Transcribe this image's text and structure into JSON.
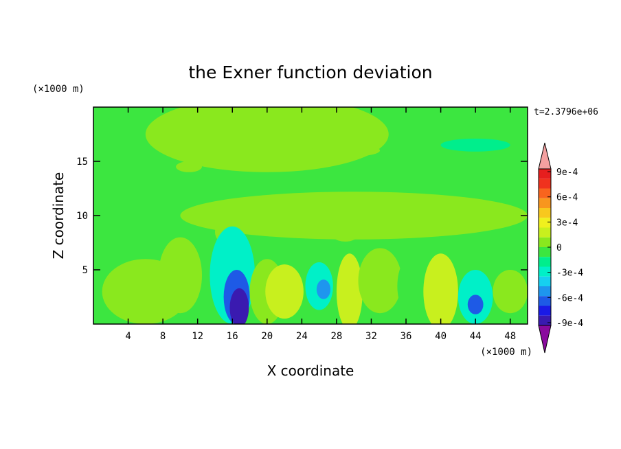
{
  "chart_data": {
    "type": "heatmap",
    "title": "the Exner function deviation",
    "xlabel": "X coordinate",
    "ylabel": "Z coordinate",
    "x_unit": "(×1000 m)",
    "y_unit": "(×1000 m)",
    "time_label": "t=2.3796e+06",
    "xlim": [
      0,
      50
    ],
    "ylim": [
      0,
      20
    ],
    "x_ticks": [
      4,
      8,
      12,
      16,
      20,
      24,
      28,
      32,
      36,
      40,
      44,
      48
    ],
    "y_ticks": [
      5,
      10,
      15
    ],
    "colorbar": {
      "min": -0.00105,
      "max": 0.00105,
      "tick_values": [
        0.0009,
        0.0006,
        0.0003,
        0,
        -0.0003,
        -0.0006,
        -0.0009
      ],
      "tick_labels": [
        "9e-4",
        "6e-4",
        "3e-4",
        "0",
        "-3e-4",
        "-6e-4",
        "-9e-4"
      ],
      "colors": [
        "#8a0a9e",
        "#3a1ab0",
        "#1a1ae6",
        "#1e5ae6",
        "#1e96ee",
        "#16d0f0",
        "#00f0c8",
        "#00ee8c",
        "#3ce640",
        "#8ae81e",
        "#c8f01e",
        "#f0f01e",
        "#f8c81e",
        "#f8961e",
        "#f8641e",
        "#f0321e",
        "#e61e1e",
        "#f4a0a0"
      ]
    },
    "field": {
      "background": -0.0001,
      "features": [
        {
          "x": 0,
          "z": 20,
          "rx": 2,
          "rz": 2,
          "value": -0.0001
        },
        {
          "x": 20,
          "z": 17.5,
          "rx": 14,
          "rz": 3.5,
          "value": 5e-05
        },
        {
          "x": 29,
          "z": 16,
          "rx": 4,
          "rz": 0.6,
          "value": 0.0001
        },
        {
          "x": 11,
          "z": 14.5,
          "rx": 1.5,
          "rz": 0.5,
          "value": 0.0001
        },
        {
          "x": 44,
          "z": 16.5,
          "rx": 4,
          "rz": 0.6,
          "value": -0.0002
        },
        {
          "x": 30,
          "z": 10,
          "rx": 20,
          "rz": 2.2,
          "value": 5e-05
        },
        {
          "x": 29,
          "z": 8.8,
          "rx": 2,
          "rz": 1.2,
          "value": 0.0001
        },
        {
          "x": 15.5,
          "z": 8.5,
          "rx": 1.5,
          "rz": 1.2,
          "value": 0.0001
        },
        {
          "x": 6,
          "z": 3,
          "rx": 5,
          "rz": 3,
          "value": 0.0001
        },
        {
          "x": 10,
          "z": 4.5,
          "rx": 2.5,
          "rz": 3.5,
          "value": 0.0001
        },
        {
          "x": 16,
          "z": 4.5,
          "rx": 2.6,
          "rz": 4.5,
          "value": -0.0003
        },
        {
          "x": 16.5,
          "z": 2.5,
          "rx": 1.5,
          "rz": 2.5,
          "value": -0.0006
        },
        {
          "x": 16.8,
          "z": 1.5,
          "rx": 1.1,
          "rz": 1.8,
          "value": -0.0009
        },
        {
          "x": 20,
          "z": 3,
          "rx": 2,
          "rz": 3,
          "value": 0.0001
        },
        {
          "x": 22,
          "z": 3,
          "rx": 2.2,
          "rz": 2.5,
          "value": 0.0002
        },
        {
          "x": 26,
          "z": 3.5,
          "rx": 1.6,
          "rz": 2.2,
          "value": -0.0003
        },
        {
          "x": 26.5,
          "z": 3.2,
          "rx": 0.8,
          "rz": 0.9,
          "value": -0.0005
        },
        {
          "x": 29.5,
          "z": 3,
          "rx": 1.5,
          "rz": 3.5,
          "value": 0.0002
        },
        {
          "x": 33,
          "z": 4,
          "rx": 2.5,
          "rz": 3,
          "value": 0.0001
        },
        {
          "x": 37,
          "z": 3.5,
          "rx": 2,
          "rz": 3,
          "value": -0.0001
        },
        {
          "x": 40,
          "z": 3,
          "rx": 2,
          "rz": 3.5,
          "value": 0.0002
        },
        {
          "x": 44,
          "z": 2.5,
          "rx": 2,
          "rz": 2.5,
          "value": -0.0003
        },
        {
          "x": 44,
          "z": 1.8,
          "rx": 0.9,
          "rz": 0.9,
          "value": -0.0006
        },
        {
          "x": 48,
          "z": 3,
          "rx": 2,
          "rz": 2,
          "value": 0.0001
        }
      ]
    }
  }
}
